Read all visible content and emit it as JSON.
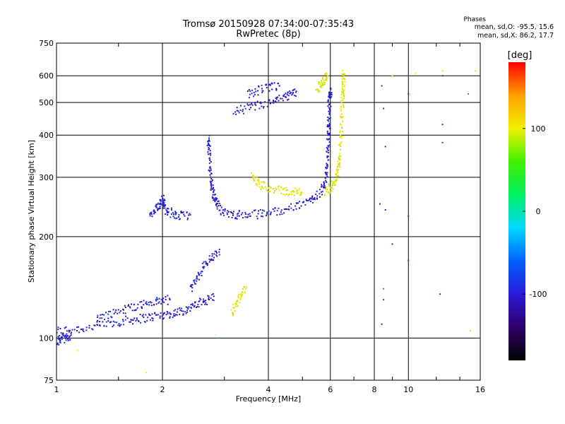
{
  "header": {
    "title_line1": "Tromsø 20150928 07:34:00-07:35:43",
    "title_line2": "RwPretec (8p)",
    "phase_title": "Phases",
    "phase_o": "mean, sd,O: -95.5, 15.6",
    "phase_x": "mean, sd,X:  86.2, 17.7"
  },
  "chart_data": {
    "type": "scatter",
    "title": "Tromsø 20150928 07:34:00-07:35:43",
    "subtitle": "RwPretec (8p)",
    "xlabel": "Frequency [MHz]",
    "ylabel": "Stationary phase Virtual Height [km]",
    "xscale": "log",
    "yscale": "log",
    "xlim": [
      1,
      16
    ],
    "ylim": [
      75,
      750
    ],
    "x_ticks": [
      1,
      2,
      4,
      6,
      8,
      10,
      16
    ],
    "x_tick_labels": [
      "1",
      "2",
      "4",
      "6",
      "8",
      "10",
      "16"
    ],
    "y_ticks": [
      75,
      100,
      200,
      300,
      400,
      500,
      600,
      750
    ],
    "y_tick_labels": [
      "75",
      "100",
      "200",
      "300",
      "400",
      "500",
      "600",
      "750"
    ],
    "grid": true,
    "colorbar": {
      "label": "[deg]",
      "range": [
        -180,
        180
      ],
      "ticks": [
        -100,
        0,
        100
      ],
      "tick_labels": [
        "-100",
        "0",
        "100"
      ],
      "colors": [
        "#000000",
        "#30006a",
        "#2a1ad8",
        "#0060ff",
        "#00d8ff",
        "#00f060",
        "#40f000",
        "#f0f000",
        "#ffa000",
        "#ff0000"
      ]
    },
    "series": [
      {
        "phase_deg": -100,
        "segments": [
          [
            [
              1.0,
              105
            ],
            [
              1.2,
              107
            ],
            [
              1.4,
              110
            ],
            [
              1.6,
              113
            ],
            [
              1.8,
              115
            ],
            [
              2.0,
              117
            ],
            [
              2.2,
              119
            ],
            [
              2.4,
              123
            ],
            [
              2.6,
              128
            ],
            [
              2.8,
              133
            ]
          ],
          [
            [
              1.0,
              98
            ],
            [
              1.05,
              100
            ],
            [
              1.1,
              102
            ]
          ],
          [
            [
              1.3,
              115
            ],
            [
              1.5,
              120
            ],
            [
              1.7,
              125
            ],
            [
              1.9,
              128
            ],
            [
              2.1,
              130
            ]
          ],
          [
            [
              2.4,
              140
            ],
            [
              2.55,
              155
            ],
            [
              2.7,
              170
            ],
            [
              2.9,
              180
            ]
          ],
          [
            [
              1.85,
              230
            ],
            [
              1.95,
              245
            ],
            [
              2.0,
              260
            ],
            [
              2.05,
              240
            ],
            [
              2.2,
              230
            ],
            [
              2.4,
              232
            ]
          ],
          [
            [
              2.7,
              390
            ],
            [
              2.72,
              350
            ],
            [
              2.75,
              300
            ],
            [
              2.78,
              270
            ],
            [
              2.85,
              250
            ],
            [
              3.0,
              235
            ],
            [
              3.3,
              232
            ],
            [
              3.7,
              233
            ],
            [
              4.2,
              238
            ],
            [
              4.8,
              245
            ],
            [
              5.3,
              258
            ],
            [
              5.7,
              275
            ],
            [
              5.85,
              300
            ],
            [
              5.9,
              350
            ],
            [
              5.93,
              400
            ],
            [
              5.95,
              450
            ],
            [
              5.97,
              500
            ],
            [
              6.0,
              550
            ]
          ],
          [
            [
              3.2,
              470
            ],
            [
              3.6,
              485
            ],
            [
              4.1,
              500
            ],
            [
              4.5,
              520
            ],
            [
              4.8,
              540
            ]
          ],
          [
            [
              3.5,
              530
            ],
            [
              3.9,
              550
            ],
            [
              4.3,
              560
            ]
          ]
        ]
      },
      {
        "phase_deg": 100,
        "segments": [
          [
            [
              3.6,
              300
            ],
            [
              3.8,
              285
            ],
            [
              4.2,
              275
            ],
            [
              4.6,
              272
            ],
            [
              5.0,
              270
            ]
          ],
          [
            [
              5.8,
              270
            ],
            [
              6.1,
              285
            ],
            [
              6.3,
              310
            ],
            [
              6.4,
              350
            ],
            [
              6.45,
              420
            ],
            [
              6.5,
              500
            ],
            [
              6.52,
              560
            ],
            [
              6.55,
              610
            ]
          ],
          [
            [
              5.5,
              550
            ],
            [
              5.7,
              570
            ],
            [
              5.9,
              600
            ]
          ],
          [
            [
              3.15,
              120
            ],
            [
              3.3,
              130
            ],
            [
              3.45,
              140
            ]
          ]
        ]
      },
      {
        "phase_deg": -90,
        "points": [
          [
            8.4,
            560
          ],
          [
            8.5,
            480
          ],
          [
            8.6,
            370
          ],
          [
            8.3,
            250
          ],
          [
            8.6,
            240
          ],
          [
            9.0,
            190
          ],
          [
            10.0,
            530
          ],
          [
            10.0,
            230
          ],
          [
            10.0,
            170
          ],
          [
            8.4,
            110
          ],
          [
            8.5,
            130
          ],
          [
            12.5,
            600
          ],
          [
            12.5,
            380
          ],
          [
            12.5,
            430
          ],
          [
            12.3,
            135
          ]
        ]
      },
      {
        "phase_deg": 100,
        "points": [
          [
            9.0,
            600
          ],
          [
            10.5,
            610
          ],
          [
            12.5,
            620
          ],
          [
            15.5,
            620
          ],
          [
            15.0,
            105
          ],
          [
            1.8,
            79
          ],
          [
            1.15,
            92
          ]
        ]
      },
      {
        "phase_deg": -50,
        "points": [
          [
            14.8,
            530
          ],
          [
            8.5,
            140
          ],
          [
            2.9,
            100
          ]
        ]
      }
    ]
  }
}
